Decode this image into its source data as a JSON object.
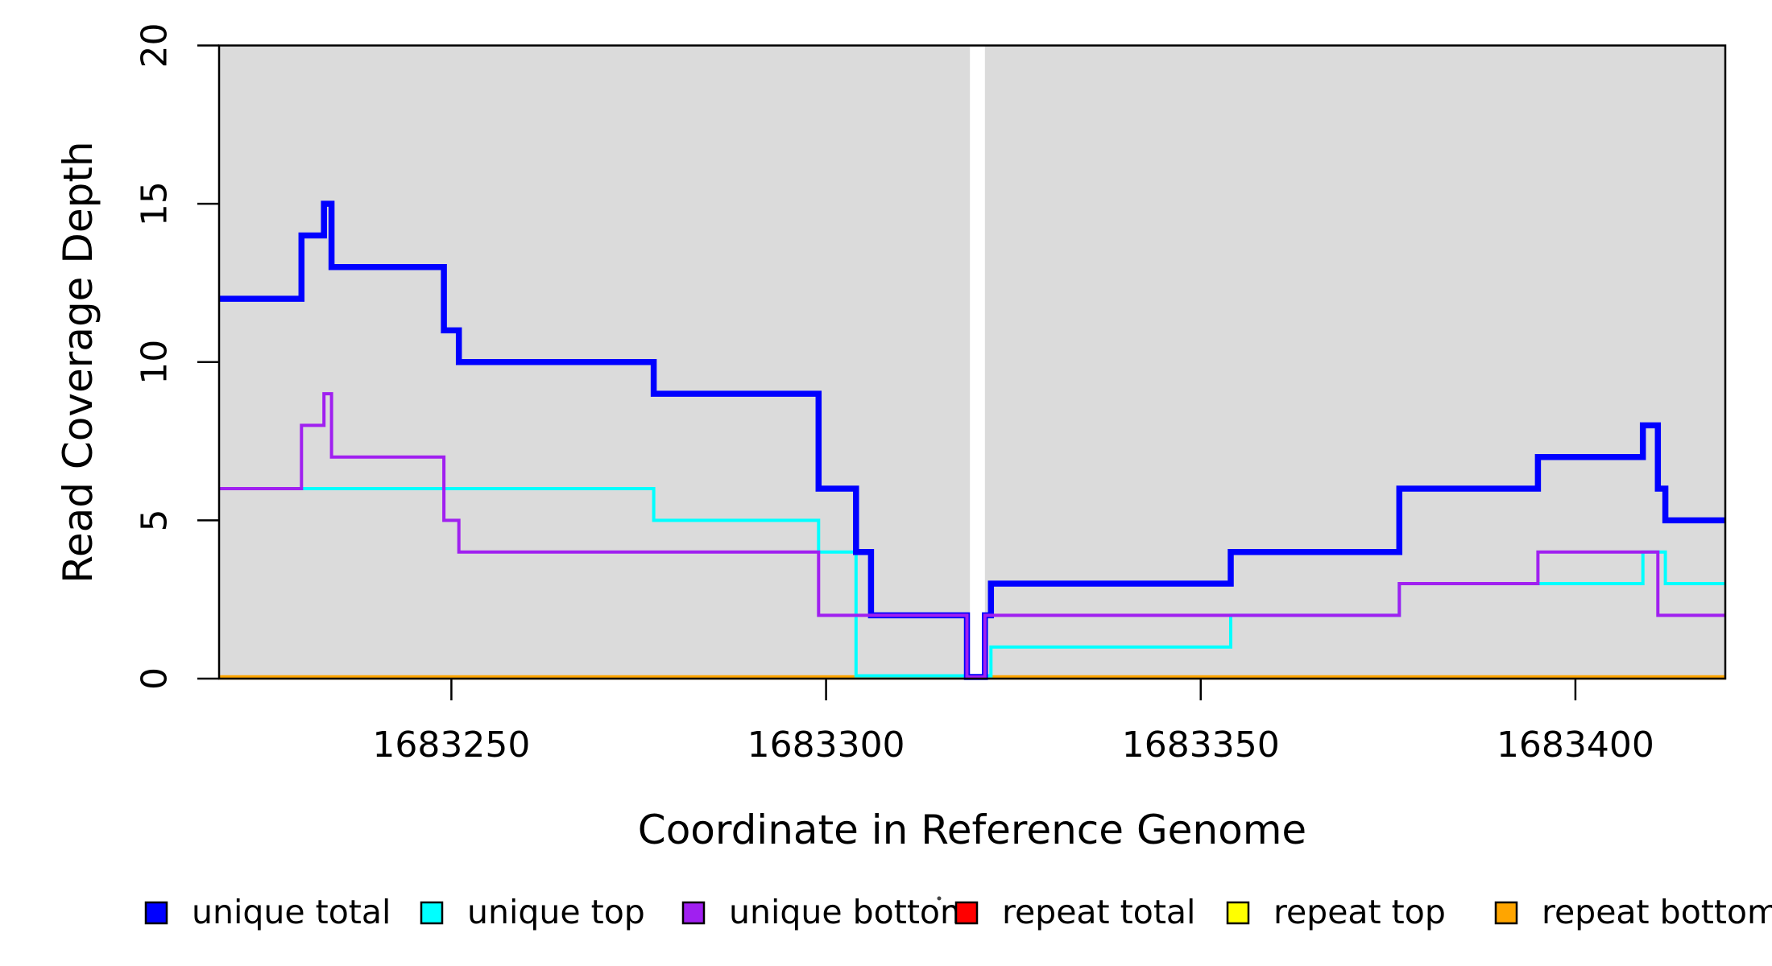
{
  "chart_data": {
    "type": "line",
    "subtype": "step-coverage-plot",
    "title": "",
    "xlabel": "Coordinate in Reference Genome",
    "ylabel": "Read Coverage Depth",
    "xlim": [
      1683219,
      1683420
    ],
    "ylim": [
      0,
      20
    ],
    "x_ticks": [
      1683250,
      1683300,
      1683350,
      1683400
    ],
    "x_tick_labels": [
      "1683250",
      "1683300",
      "1683350",
      "1683400"
    ],
    "y_ticks": [
      0,
      5,
      10,
      15,
      20
    ],
    "y_tick_labels": [
      "0",
      "5",
      "10",
      "15",
      "20"
    ],
    "grid": "off",
    "plot_background": "#dbdbdb",
    "masked_region": {
      "x_start": 1683319.2,
      "x_end": 1683321.2,
      "color": "#ffffff"
    },
    "legend_position": "bottom",
    "series": [
      {
        "name": "unique total",
        "color": "#0000ff",
        "steps": [
          [
            1683219,
            12
          ],
          [
            1683230,
            14
          ],
          [
            1683233,
            15
          ],
          [
            1683234,
            13
          ],
          [
            1683249,
            11
          ],
          [
            1683251,
            10
          ],
          [
            1683277,
            9
          ],
          [
            1683299,
            6
          ],
          [
            1683304,
            4
          ],
          [
            1683306,
            2
          ],
          [
            1683318.8,
            0
          ],
          [
            1683321.2,
            2
          ],
          [
            1683322,
            3
          ],
          [
            1683354,
            4
          ],
          [
            1683376.5,
            6
          ],
          [
            1683395,
            7
          ],
          [
            1683409,
            8
          ],
          [
            1683411,
            6
          ],
          [
            1683412,
            5
          ]
        ],
        "x_end": 1683420
      },
      {
        "name": "unique top",
        "color": "#00ffff",
        "steps": [
          [
            1683219,
            6
          ],
          [
            1683277,
            5
          ],
          [
            1683299,
            4
          ],
          [
            1683304,
            0
          ],
          [
            1683322,
            1
          ],
          [
            1683354,
            2
          ],
          [
            1683376.5,
            3
          ],
          [
            1683409,
            4
          ],
          [
            1683412,
            3
          ]
        ],
        "x_end": 1683420
      },
      {
        "name": "unique bottom",
        "color": "#a020f0",
        "steps": [
          [
            1683219,
            6
          ],
          [
            1683230,
            8
          ],
          [
            1683233,
            9
          ],
          [
            1683234,
            7
          ],
          [
            1683249,
            5
          ],
          [
            1683251,
            4
          ],
          [
            1683299,
            2
          ],
          [
            1683318.8,
            0
          ],
          [
            1683321.2,
            2
          ],
          [
            1683376.5,
            3
          ],
          [
            1683395,
            4
          ],
          [
            1683411,
            2
          ]
        ],
        "x_end": 1683420
      },
      {
        "name": "repeat total",
        "color": "#ff0000",
        "steps": [
          [
            1683219,
            0
          ]
        ],
        "x_end": 1683420
      },
      {
        "name": "repeat top",
        "color": "#ffff00",
        "steps": [
          [
            1683219,
            0
          ]
        ],
        "x_end": 1683420
      },
      {
        "name": "repeat bottom",
        "color": "#ffa500",
        "steps": [
          [
            1683219,
            0
          ]
        ],
        "x_end": 1683420
      }
    ],
    "legend": {
      "items": [
        {
          "label": "unique total",
          "color": "#0000ff"
        },
        {
          "label": "unique top",
          "color": "#00ffff"
        },
        {
          "label": "unique bottom",
          "color": "#a020f0"
        },
        {
          "label": "repeat total",
          "color": "#ff0000"
        },
        {
          "label": "repeat top",
          "color": "#ffff00"
        },
        {
          "label": "repeat bottom",
          "color": "#ffa500"
        }
      ]
    }
  }
}
